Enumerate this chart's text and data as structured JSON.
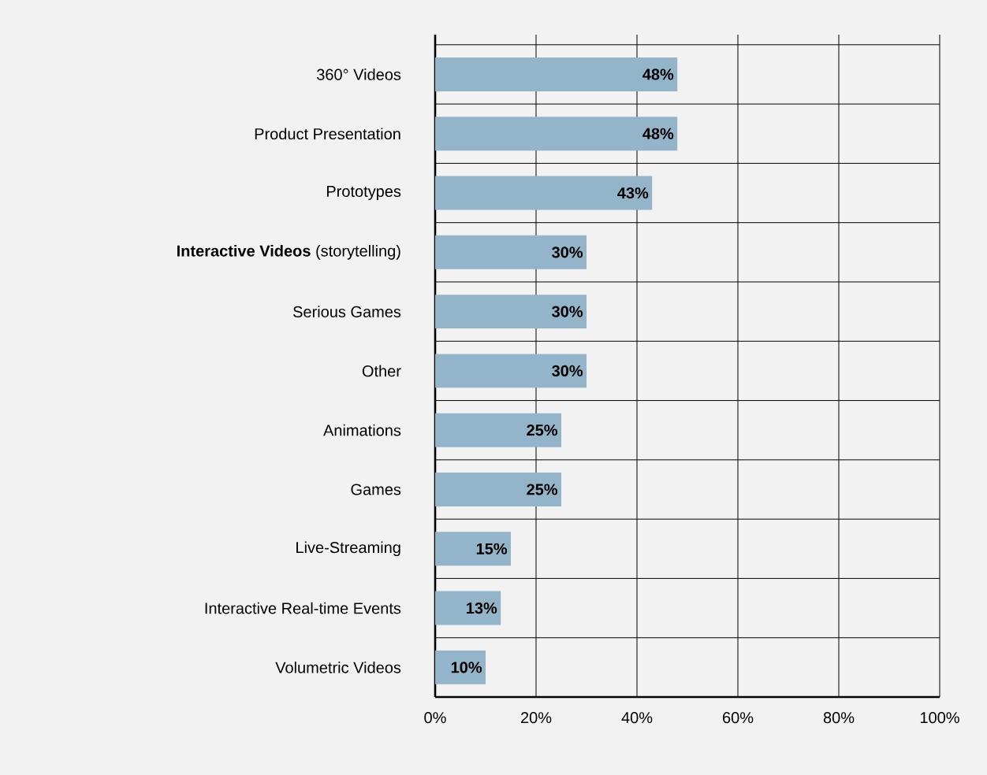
{
  "chart_data": {
    "type": "bar",
    "orientation": "horizontal",
    "categories": [
      "360° Videos",
      "Product Presentation",
      "Prototypes",
      "**Interactive Videos** (storytelling)",
      "Serious Games",
      "Other",
      "Animations",
      "Games",
      "Live-Streaming",
      "Interactive Real-time Events",
      "Volumetric Videos"
    ],
    "values": [
      48,
      48,
      43,
      30,
      30,
      30,
      25,
      25,
      15,
      13,
      10
    ],
    "value_labels": [
      "48%",
      "48%",
      "43%",
      "30%",
      "30%",
      "30%",
      "25%",
      "25%",
      "15%",
      "13%",
      "10%"
    ],
    "color": "#94b4c9",
    "xlim": [
      0,
      100
    ],
    "xticks": [
      {
        "value": 0,
        "label": "0%"
      },
      {
        "value": 20,
        "label": "20%"
      },
      {
        "value": 40,
        "label": "40%"
      },
      {
        "value": 60,
        "label": "60%"
      },
      {
        "value": 80,
        "label": "80%"
      },
      {
        "value": 100,
        "label": "100%"
      }
    ],
    "grid": true
  }
}
